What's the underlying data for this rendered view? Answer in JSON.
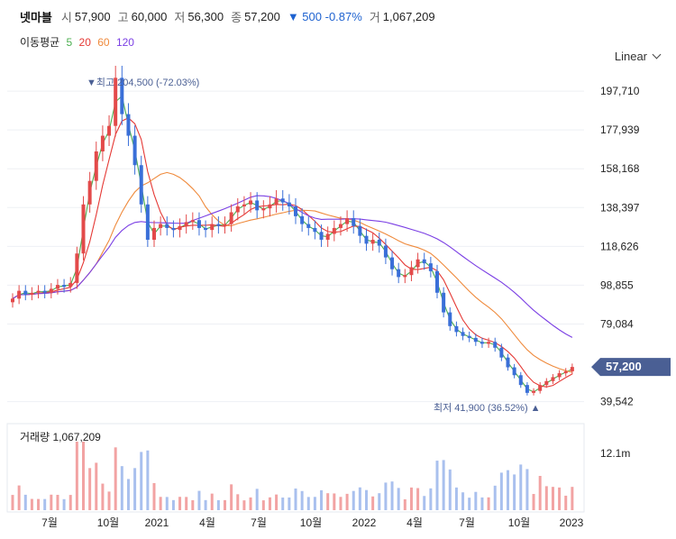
{
  "header": {
    "name": "넷마블",
    "open_label": "시",
    "open": "57,900",
    "high_label": "고",
    "high": "60,000",
    "low_label": "저",
    "low": "56,300",
    "close_label": "종",
    "close": "57,200",
    "change": "▼ 500 -0.87%",
    "volume_label": "거",
    "volume": "1,067,209"
  },
  "ma_legend": {
    "title": "이동평균",
    "items": [
      {
        "label": "5",
        "color": "#4caf50"
      },
      {
        "label": "20",
        "color": "#e53935"
      },
      {
        "label": "60",
        "color": "#ef8a3c"
      },
      {
        "label": "120",
        "color": "#7b3fe4"
      }
    ]
  },
  "scale_button": {
    "label": "Linear",
    "icon": "chevron-down-icon"
  },
  "colors": {
    "up": "#e34a4a",
    "down": "#3a6fd8",
    "volume": "#b8c2d6",
    "current_tag": "#4a5f94"
  },
  "chart_data": {
    "type": "candlestick",
    "y_ticks": [
      "197,710",
      "177,939",
      "158,168",
      "138,397",
      "118,626",
      "98,855",
      "79,084",
      "39,542"
    ],
    "ylim": [
      32000,
      212000
    ],
    "x_labels": [
      "7월",
      "10월",
      "2021",
      "4월",
      "7월",
      "10월",
      "2022",
      "4월",
      "7월",
      "10월",
      "2023"
    ],
    "current_price": "57,200",
    "max_annotation": {
      "label": "▼최고 204,500 (-72.03%)",
      "value": 204500
    },
    "min_annotation": {
      "label": "최저 41,900 (36.52%) ▲",
      "value": 41900
    },
    "close_series": [
      92000,
      96000,
      94000,
      95000,
      96000,
      95000,
      97000,
      99000,
      98000,
      100000,
      115000,
      140000,
      152000,
      167000,
      175000,
      180000,
      204500,
      186000,
      175000,
      160000,
      140000,
      122000,
      128000,
      130000,
      128000,
      127000,
      129000,
      131000,
      132000,
      128000,
      127000,
      130000,
      129000,
      130000,
      136000,
      139000,
      140000,
      142000,
      137000,
      138000,
      140000,
      143000,
      141000,
      139000,
      134000,
      130000,
      128000,
      126000,
      122000,
      125000,
      128000,
      130000,
      133000,
      129000,
      124000,
      120000,
      122000,
      119000,
      113000,
      107000,
      103000,
      104000,
      108000,
      112000,
      110000,
      106000,
      95000,
      85000,
      78000,
      75000,
      73000,
      72000,
      70000,
      69000,
      70000,
      67000,
      62000,
      57000,
      53000,
      48000,
      44000,
      45000,
      48000,
      50000,
      52000,
      54000,
      55000,
      57200
    ],
    "volume": {
      "label": "거래량 1,067,209",
      "tick": "12.1m",
      "max": 14000000
    }
  }
}
